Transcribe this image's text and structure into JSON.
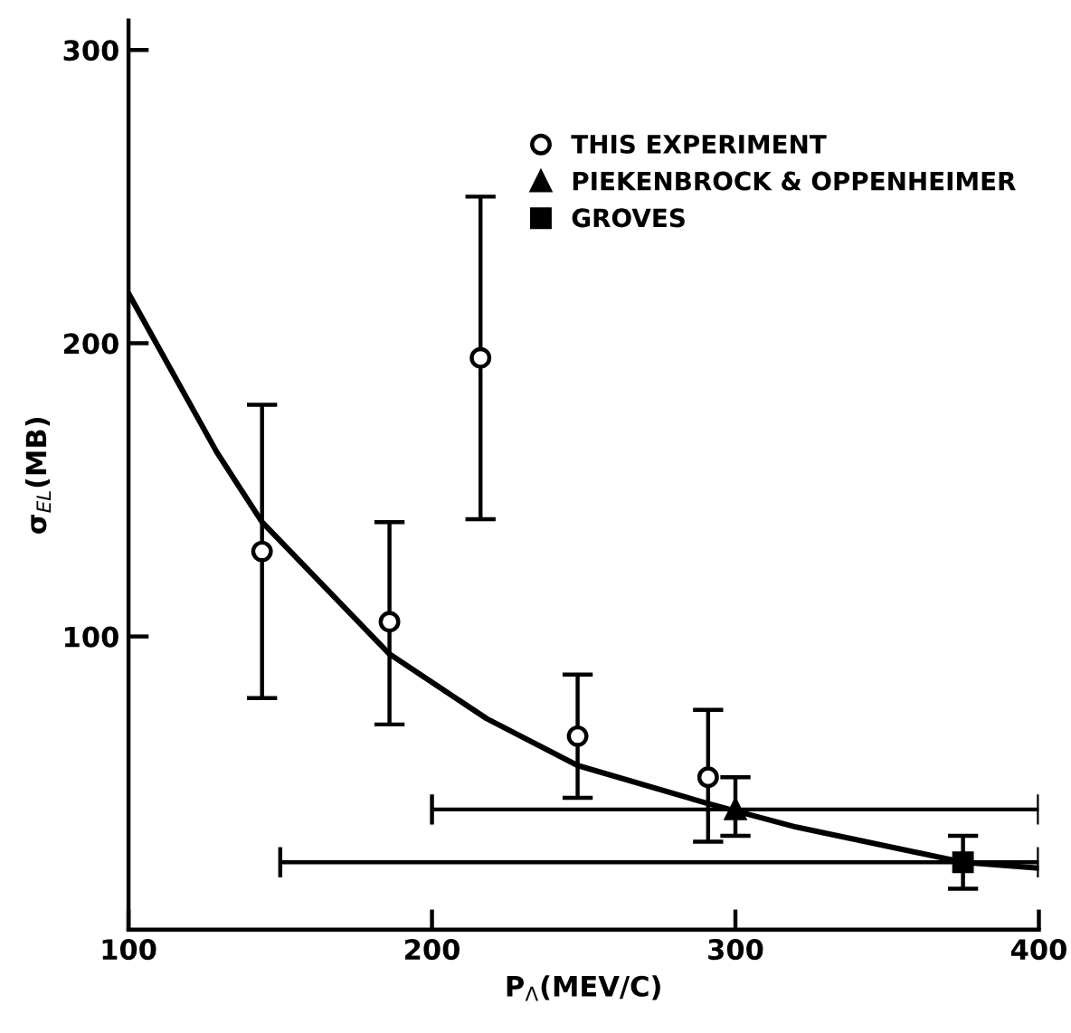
{
  "chart_data": {
    "type": "scatter",
    "xlabel": "P$_{Λ}$(MEV/C)",
    "ylabel": "σ$_{EL}$(MB)",
    "xlim": [
      100,
      400
    ],
    "ylim": [
      0,
      310
    ],
    "xticks": [
      100,
      200,
      300,
      400
    ],
    "yticks": [
      100,
      200,
      300
    ],
    "grid": false,
    "legend": "top right",
    "series": [
      {
        "name": "THIS EXPERIMENT",
        "color": "#000000",
        "marker": "circle",
        "x": [
          144,
          186,
          216,
          248,
          291
        ],
        "values": [
          129,
          105,
          195,
          66,
          52
        ],
        "errors": [
          [
            79,
            179
          ],
          [
            70,
            139
          ],
          [
            140,
            250
          ],
          [
            45,
            87
          ],
          [
            30,
            75
          ]
        ]
      },
      {
        "name": "PIEKENBROCK & OPPENHEIMER",
        "color": "#000000",
        "marker": "triangle",
        "x": [
          300
        ],
        "values": [
          41
        ],
        "errors": [
          [
            32,
            52
          ]
        ],
        "xerrors": [
          [
            200,
            400
          ]
        ]
      },
      {
        "name": "GROVES",
        "color": "#000000",
        "marker": "square",
        "x": [
          375
        ],
        "values": [
          23
        ],
        "errors": [
          [
            14,
            32
          ]
        ],
        "xerrors": [
          [
            150,
            400
          ]
        ]
      },
      {
        "type": "line",
        "color": "#000000",
        "marker": "none",
        "x": [
          100,
          129,
          144,
          186,
          218,
          248,
          291,
          320,
          375,
          400
        ],
        "values": [
          217,
          163,
          139,
          94,
          72,
          56,
          43,
          35,
          23,
          21
        ]
      }
    ]
  }
}
